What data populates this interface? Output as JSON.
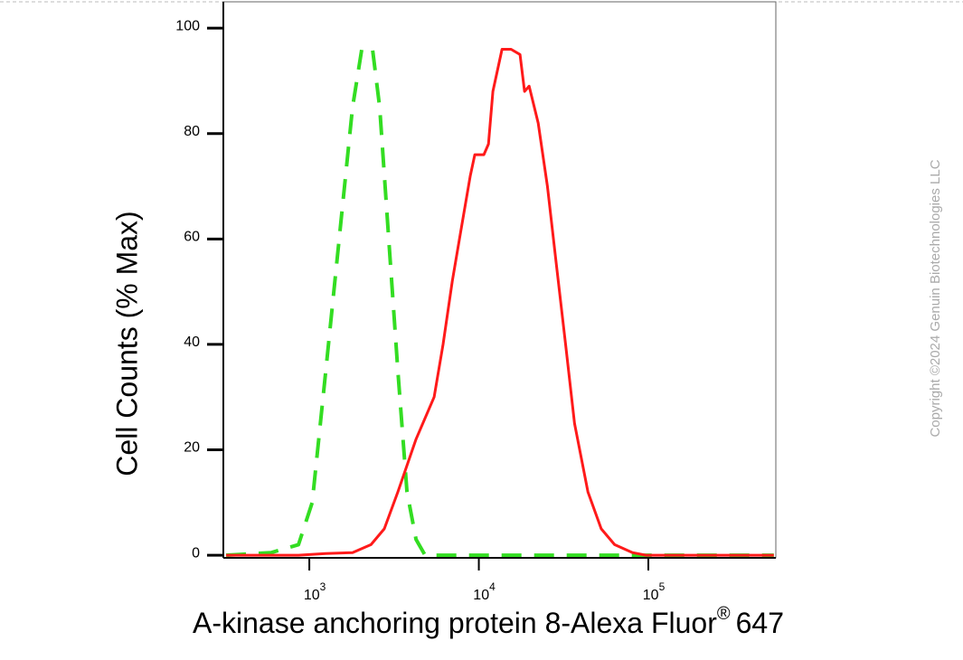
{
  "chart_data": {
    "type": "line",
    "xlabel": "A-kinase anchoring protein 8-Alexa Fluor",
    "xlabel_mark": "®",
    "xlabel_suffix": "647",
    "ylabel": "Cell Counts (% Max)",
    "watermark": "Copyright ©2024 Genuin Biotechnologies LLC",
    "xscale": "log",
    "grid": false,
    "xlim": [
      311,
      565000
    ],
    "ylim": [
      -0.5,
      105
    ],
    "yticks": [
      0,
      20,
      40,
      60,
      80,
      100
    ],
    "xticks": [
      {
        "value": 1000,
        "label": "10",
        "exponent": "3"
      },
      {
        "value": 10000,
        "label": "10",
        "exponent": "4"
      },
      {
        "value": 100000,
        "label": "10",
        "exponent": "5"
      }
    ],
    "series": [
      {
        "color": "#33dd22",
        "dash": "dashed",
        "x": [
          323,
          597,
          863,
          1040,
          1250,
          1500,
          1800,
          2040,
          2360,
          2600,
          2940,
          3330,
          3770,
          4260,
          4820,
          550000
        ],
        "values": [
          0,
          0.5,
          2,
          10,
          35,
          60,
          85,
          96,
          96,
          85,
          60,
          35,
          12,
          3,
          0,
          0
        ]
      },
      {
        "color": "#ff1a1a",
        "dash": "solid",
        "x": [
          323,
          863,
          1250,
          1800,
          2310,
          2770,
          3330,
          4260,
          5450,
          6150,
          6970,
          7870,
          8900,
          9470,
          10700,
          11400,
          12100,
          13700,
          15500,
          17500,
          18600,
          19800,
          22400,
          25400,
          28700,
          32500,
          36700,
          44000,
          52700,
          63200,
          80600,
          96700,
          550000
        ],
        "values": [
          0,
          0,
          0.3,
          0.5,
          2,
          5,
          12,
          22,
          30,
          40,
          52,
          62,
          72,
          76,
          76,
          78,
          88,
          96,
          96,
          95,
          88,
          89,
          82,
          70,
          55,
          40,
          25,
          12,
          5,
          2,
          0.5,
          0,
          0
        ]
      }
    ]
  }
}
